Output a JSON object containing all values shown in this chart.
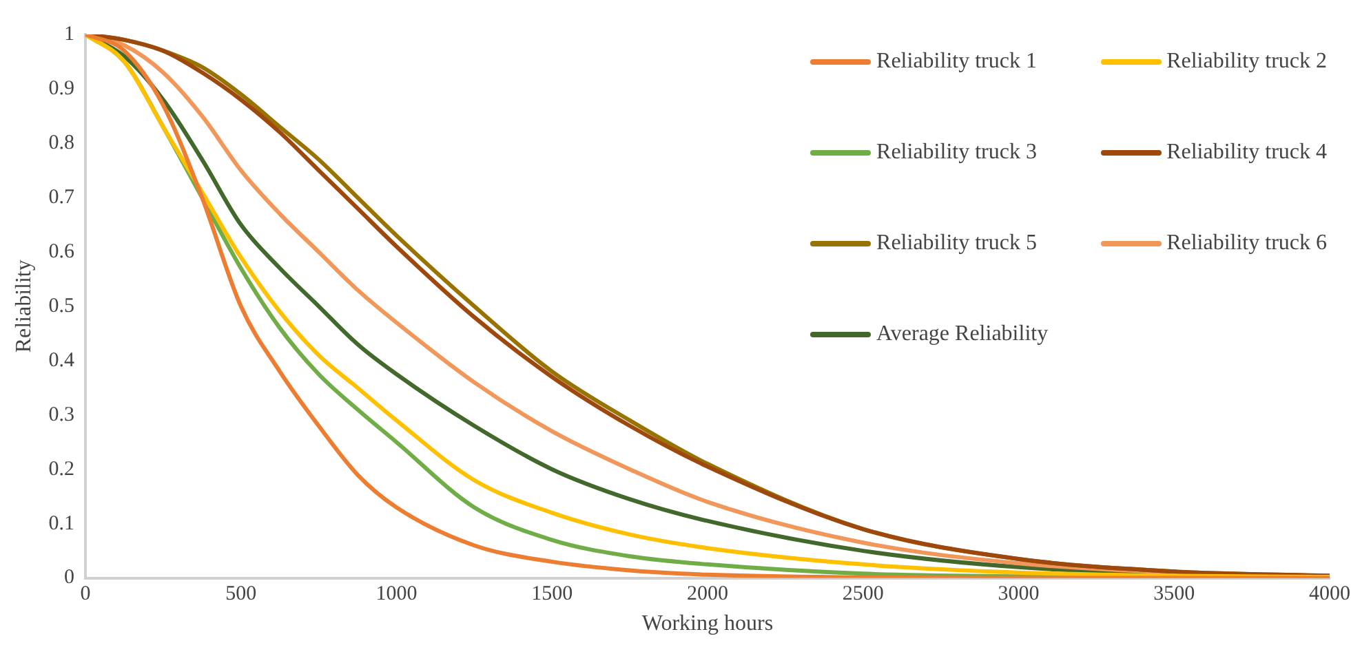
{
  "chart_data": {
    "type": "line",
    "xlabel": "Working hours",
    "ylabel": "Reliability",
    "x": [
      0,
      125,
      250,
      375,
      500,
      625,
      750,
      875,
      1000,
      1250,
      1500,
      1750,
      2000,
      2500,
      3000,
      3500,
      4000
    ],
    "xlim": [
      0,
      4000
    ],
    "xticks": [
      0,
      500,
      1000,
      1500,
      2000,
      2500,
      3000,
      3500,
      4000
    ],
    "ylim": [
      0,
      1
    ],
    "yticks": [
      0,
      0.1,
      0.2,
      0.3,
      0.4,
      0.5,
      0.6,
      0.7,
      0.8,
      0.9,
      1
    ],
    "grid": false,
    "legend": "top right",
    "marker": "none",
    "line_style": "solid",
    "series": [
      {
        "name": "Reliability truck 1",
        "color": "#ed7d31",
        "values": [
          1,
          0.97,
          0.87,
          0.7,
          0.5,
          0.38,
          0.28,
          0.19,
          0.13,
          0.06,
          0.03,
          0.014,
          0.006,
          0.001,
          0,
          0,
          0
        ]
      },
      {
        "name": "Reliability truck 2",
        "color": "#ffc000",
        "values": [
          1,
          0.95,
          0.83,
          0.71,
          0.59,
          0.49,
          0.41,
          0.35,
          0.29,
          0.18,
          0.12,
          0.08,
          0.055,
          0.025,
          0.01,
          0.004,
          0.002
        ]
      },
      {
        "name": "Reliability truck 3",
        "color": "#70ad47",
        "values": [
          1,
          0.95,
          0.83,
          0.7,
          0.57,
          0.46,
          0.375,
          0.31,
          0.25,
          0.13,
          0.07,
          0.04,
          0.025,
          0.008,
          0.003,
          0.001,
          0
        ]
      },
      {
        "name": "Reliability truck 4",
        "color": "#9e480e",
        "values": [
          1,
          0.99,
          0.97,
          0.93,
          0.88,
          0.82,
          0.75,
          0.68,
          0.61,
          0.48,
          0.37,
          0.28,
          0.205,
          0.09,
          0.035,
          0.012,
          0.004
        ]
      },
      {
        "name": "Reliability truck 5",
        "color": "#997300",
        "values": [
          1,
          0.99,
          0.97,
          0.94,
          0.89,
          0.83,
          0.77,
          0.7,
          0.63,
          0.5,
          0.38,
          0.29,
          0.21,
          0.09,
          0.035,
          0.012,
          0.004
        ]
      },
      {
        "name": "Reliability truck 6",
        "color": "#f1975a",
        "values": [
          1,
          0.98,
          0.93,
          0.85,
          0.75,
          0.67,
          0.6,
          0.53,
          0.47,
          0.36,
          0.27,
          0.2,
          0.14,
          0.065,
          0.027,
          0.01,
          0.004
        ]
      },
      {
        "name": "Average Reliability",
        "color": "#43682b",
        "values": [
          1,
          0.96,
          0.88,
          0.77,
          0.65,
          0.57,
          0.5,
          0.43,
          0.375,
          0.28,
          0.2,
          0.145,
          0.105,
          0.05,
          0.02,
          0.008,
          0.003
        ]
      }
    ]
  }
}
